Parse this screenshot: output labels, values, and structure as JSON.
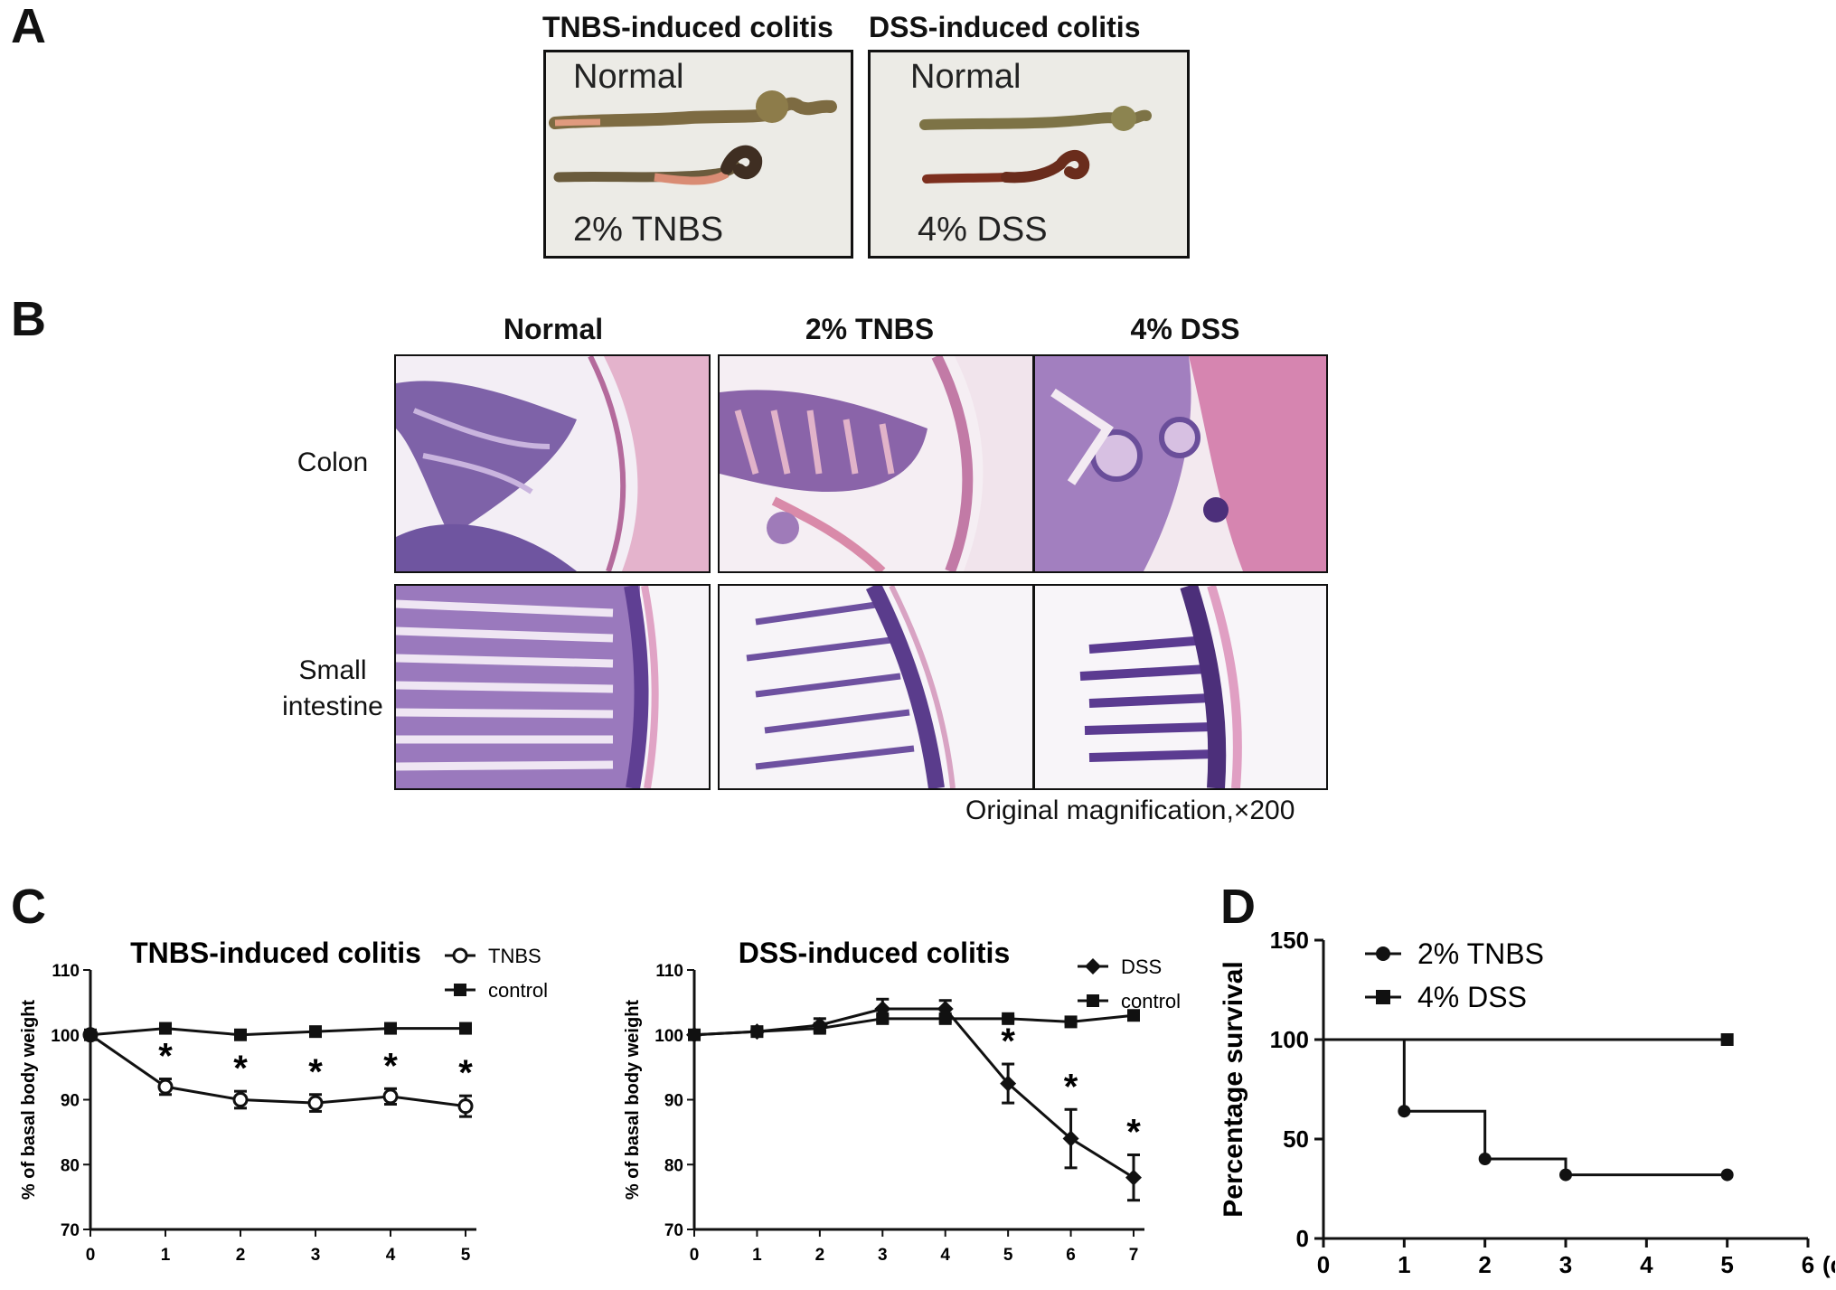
{
  "panel_a": {
    "letter": "A",
    "tnbs_title": "TNBS-induced colitis",
    "dss_title": "DSS-induced colitis",
    "tnbs_photo": {
      "top_label": "Normal",
      "bottom_label": "2% TNBS"
    },
    "dss_photo": {
      "top_label": "Normal",
      "bottom_label": "4% DSS"
    }
  },
  "panel_b": {
    "letter": "B",
    "columns": [
      "Normal",
      "2% TNBS",
      "4% DSS"
    ],
    "rows": [
      "Colon",
      "Small intestine"
    ],
    "magnification": "Original magnification,×200"
  },
  "panel_c": {
    "letter": "C"
  },
  "panel_d": {
    "letter": "D"
  },
  "chart_data": [
    {
      "type": "line",
      "title": "TNBS-induced colitis",
      "xlabel": "",
      "ylabel": "% of basal body weight",
      "x": [
        0,
        1,
        2,
        3,
        4,
        5
      ],
      "xlim": [
        0,
        5
      ],
      "ylim": [
        70,
        110
      ],
      "yticks": [
        70,
        80,
        90,
        100,
        110
      ],
      "legend_position": "top-right",
      "series": [
        {
          "name": "TNBS",
          "marker": "open-circle",
          "values": [
            100,
            92,
            90,
            89.5,
            90.5,
            89
          ],
          "errors": [
            0,
            1.2,
            1.3,
            1.3,
            1.2,
            1.6
          ]
        },
        {
          "name": "control",
          "marker": "square",
          "values": [
            100,
            101,
            100,
            100.5,
            101,
            101
          ],
          "errors": [
            0,
            0.4,
            0.3,
            0.3,
            0.3,
            0.3
          ]
        }
      ],
      "annotations": [
        {
          "x": 1,
          "text": "*"
        },
        {
          "x": 2,
          "text": "*"
        },
        {
          "x": 3,
          "text": "*"
        },
        {
          "x": 4,
          "text": "*"
        },
        {
          "x": 5,
          "text": "*"
        }
      ]
    },
    {
      "type": "line",
      "title": "DSS-induced colitis",
      "xlabel": "",
      "ylabel": "% of basal body weight",
      "x": [
        0,
        1,
        2,
        3,
        4,
        5,
        6,
        7
      ],
      "xlim": [
        0,
        7
      ],
      "ylim": [
        70,
        110
      ],
      "yticks": [
        70,
        80,
        90,
        100,
        110
      ],
      "legend_position": "top-right",
      "series": [
        {
          "name": "DSS",
          "marker": "diamond",
          "values": [
            100,
            100.5,
            101.5,
            104,
            104,
            92.5,
            84,
            78
          ],
          "errors": [
            0,
            0.4,
            1,
            1.5,
            1.3,
            3,
            4.5,
            3.5
          ]
        },
        {
          "name": "control",
          "marker": "square",
          "values": [
            100,
            100.5,
            101,
            102.5,
            102.5,
            102.5,
            102,
            103
          ],
          "errors": [
            0,
            0.3,
            0.4,
            0.5,
            0.5,
            0.3,
            0.3,
            0.3
          ]
        }
      ],
      "annotations": [
        {
          "x": 5,
          "text": "*"
        },
        {
          "x": 6,
          "text": "*"
        },
        {
          "x": 7,
          "text": "*"
        }
      ]
    },
    {
      "type": "line",
      "step": true,
      "title": "",
      "xlabel": "(d)",
      "ylabel": "Percentage survival",
      "xticks": [
        0,
        1,
        2,
        3,
        4,
        5,
        6
      ],
      "xlim": [
        0,
        6
      ],
      "ylim": [
        0,
        150
      ],
      "yticks": [
        0,
        50,
        100,
        150
      ],
      "legend_position": "top-left",
      "series": [
        {
          "name": "2% TNBS",
          "marker": "circle",
          "x": [
            0,
            1,
            2,
            3,
            5
          ],
          "values": [
            100,
            64,
            40,
            32,
            32
          ]
        },
        {
          "name": "4% DSS",
          "marker": "square",
          "x": [
            0,
            5
          ],
          "values": [
            100,
            100
          ]
        }
      ]
    }
  ]
}
